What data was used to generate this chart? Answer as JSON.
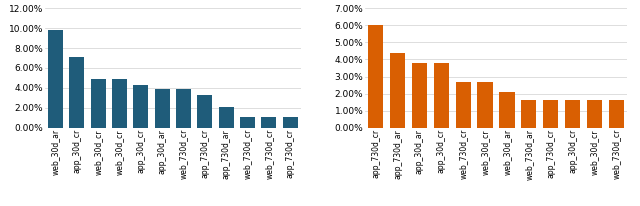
{
  "left": {
    "labels": [
      "web_30d_ar",
      "app_30d_cr",
      "web_30d_cr",
      "web_30d_cr",
      "app_30d_cr",
      "app_30d_ar",
      "web_730d_cr",
      "app_730d_cr",
      "app_730d_ar",
      "web_730d_cr",
      "web_730d_cr",
      "app_730d_cr"
    ],
    "values": [
      0.098,
      0.071,
      0.049,
      0.049,
      0.043,
      0.039,
      0.039,
      0.033,
      0.021,
      0.011,
      0.011,
      0.011
    ],
    "ylim": [
      0,
      0.12
    ],
    "yticks": [
      0.0,
      0.02,
      0.04,
      0.06,
      0.08,
      0.1,
      0.12
    ],
    "color": "#1f5c7a",
    "bar_width": 0.7
  },
  "right": {
    "labels": [
      "app_730d_cr",
      "app_730d_ar",
      "app_30d_ar",
      "app_30d_cr",
      "web_730d_cr",
      "web_30d_cr",
      "web_30d_ar",
      "web_730d_ar",
      "app_730d_cr",
      "app_30d_cr",
      "web_30d_cr",
      "web_730d_cr"
    ],
    "values": [
      0.06,
      0.044,
      0.038,
      0.038,
      0.027,
      0.027,
      0.021,
      0.016,
      0.016,
      0.016,
      0.016,
      0.016
    ],
    "ylim": [
      0,
      0.07
    ],
    "yticks": [
      0.0,
      0.01,
      0.02,
      0.03,
      0.04,
      0.05,
      0.06,
      0.07
    ],
    "color": "#d95f02",
    "bar_width": 0.7
  },
  "bg_color": "#ffffff",
  "grid_color": "#d0d0d0",
  "ytick_fontsize": 6.5,
  "xtick_fontsize": 5.5,
  "fig_width": 6.4,
  "fig_height": 2.06,
  "dpi": 100
}
